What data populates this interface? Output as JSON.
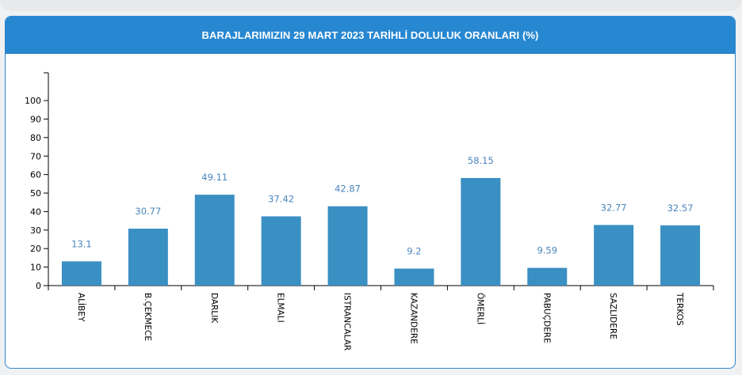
{
  "panel": {
    "title": "BARAJLARIMIZIN 29 MART 2023 TARİHLİ DOLULUK ORANLARI (%)"
  },
  "colors": {
    "header": "#2787d1",
    "bar": "#3a8fc3",
    "label": "#4a86bd"
  },
  "chart_data": {
    "type": "bar",
    "title": "BARAJLARIMIZIN 29 MART 2023 TARİHLİ DOLULUK ORANLARI (%)",
    "categories": [
      "ALİBEY",
      "B.ÇEKMECE",
      "DARLIK",
      "ELMALI",
      "ISTRANCALAR",
      "KAZANDERE",
      "ÖMERLİ",
      "PABUÇDERE",
      "SAZLIDERE",
      "TERKOS"
    ],
    "values": [
      13.1,
      30.77,
      49.11,
      37.42,
      42.87,
      9.2,
      58.15,
      9.59,
      32.77,
      32.57
    ],
    "value_labels": [
      "13.1",
      "30.77",
      "49.11",
      "37.42",
      "42.87",
      "9.2",
      "58.15",
      "9.59",
      "32.77",
      "32.57"
    ],
    "yticks": [
      "0",
      "10",
      "20",
      "30",
      "40",
      "50",
      "60",
      "70",
      "80",
      "90",
      "100"
    ],
    "ylim": [
      0,
      115
    ],
    "xlabel": "",
    "ylabel": "",
    "grid": false,
    "legend": "none"
  }
}
